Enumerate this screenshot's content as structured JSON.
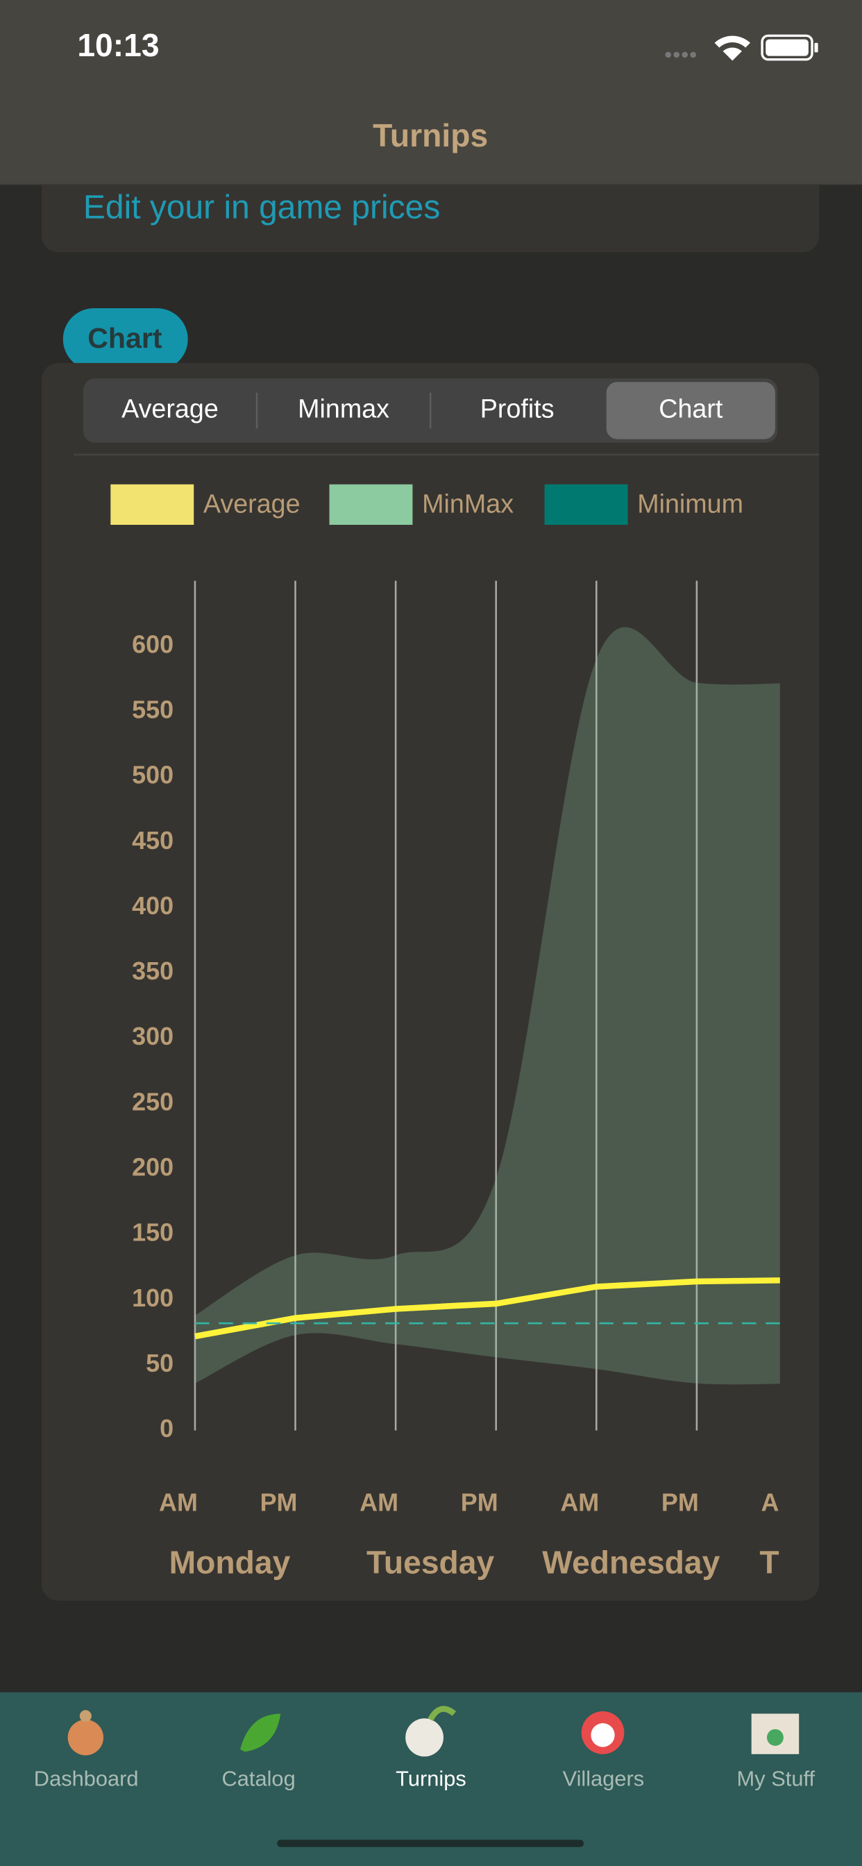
{
  "status_bar": {
    "time": "10:13"
  },
  "nav": {
    "title": "Turnips"
  },
  "edit_link": "Edit your in game prices",
  "section_badge": "Chart",
  "segments": [
    "Average",
    "Minmax",
    "Profits",
    "Chart"
  ],
  "selected_segment": 3,
  "chart_data": {
    "type": "line",
    "categories": [
      "AM",
      "PM",
      "AM",
      "PM",
      "AM",
      "PM",
      "AM"
    ],
    "days": [
      "Monday",
      "Tuesday",
      "Wednesday",
      "Thursday"
    ],
    "series": [
      {
        "name": "Average",
        "color": "#f2e370",
        "line_color": "#fff23a",
        "values": [
          72,
          86,
          93,
          97,
          110,
          114,
          115
        ]
      },
      {
        "name": "MinMax",
        "color": "#8ccaa0",
        "values": [
          88,
          134,
          134,
          193,
          590,
          572,
          572
        ],
        "lows": [
          36,
          73,
          66,
          56,
          47,
          36,
          36
        ]
      },
      {
        "name": "Minimum",
        "color": "#007a70",
        "line_color": "#33b5a5",
        "values": [
          82,
          82,
          82,
          82,
          82,
          82,
          82
        ]
      }
    ],
    "ylim": [
      0,
      600
    ],
    "yticks": [
      0,
      50,
      100,
      150,
      200,
      250,
      300,
      350,
      400,
      450,
      500,
      550,
      600
    ]
  },
  "tab_bar": {
    "items": [
      "Dashboard",
      "Catalog",
      "Turnips",
      "Villagers",
      "My Stuff"
    ],
    "active": 2
  }
}
